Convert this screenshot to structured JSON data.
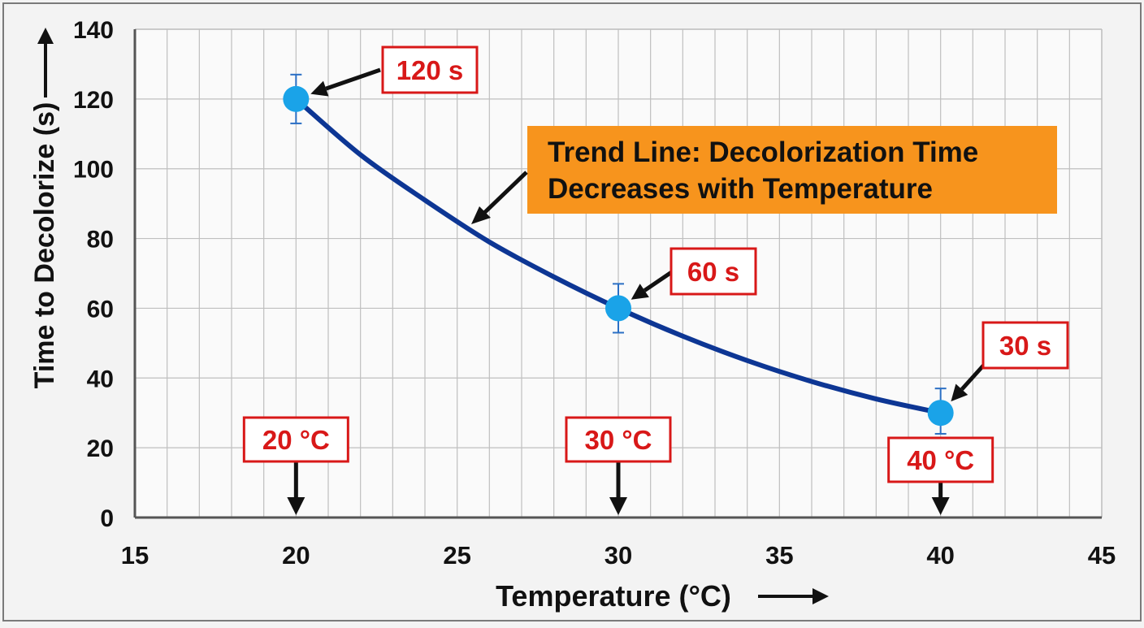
{
  "chart_data": {
    "type": "line",
    "title": "",
    "xlabel": "Temperature (°C)",
    "ylabel": "Time to Decolorize (s)",
    "xlim": [
      15,
      45
    ],
    "ylim": [
      0,
      140
    ],
    "xticks": [
      15,
      20,
      25,
      30,
      35,
      40,
      45
    ],
    "yticks": [
      0,
      20,
      40,
      60,
      80,
      100,
      120,
      140
    ],
    "grid": true,
    "series": [
      {
        "name": "",
        "x": [
          20,
          30,
          40
        ],
        "y": [
          120,
          60,
          30
        ],
        "error_low": [
          113,
          53,
          24
        ],
        "error_high": [
          127,
          67,
          37
        ]
      }
    ],
    "trend_line": {
      "x": [
        20,
        22,
        24,
        26,
        28,
        30,
        32,
        34,
        36,
        38,
        40
      ],
      "y": [
        120,
        104,
        91,
        79,
        69,
        60,
        52,
        45,
        39,
        34,
        30
      ]
    },
    "point_labels": [
      "120 s",
      "60 s",
      "30 s"
    ],
    "temperature_labels": [
      "20 °C",
      "30 °C",
      "40 °C"
    ],
    "annotation": {
      "line1": "Trend Line: Decolorization Time",
      "line2": "Decreases with Temperature"
    },
    "colors": {
      "trend": "#0d3694",
      "point": "#1aa3e8",
      "label_border": "#d81818",
      "label_text": "#d81818",
      "annotation_bg": "#f7941d",
      "grid": "#bfbfbf",
      "axis": "#555555"
    }
  }
}
